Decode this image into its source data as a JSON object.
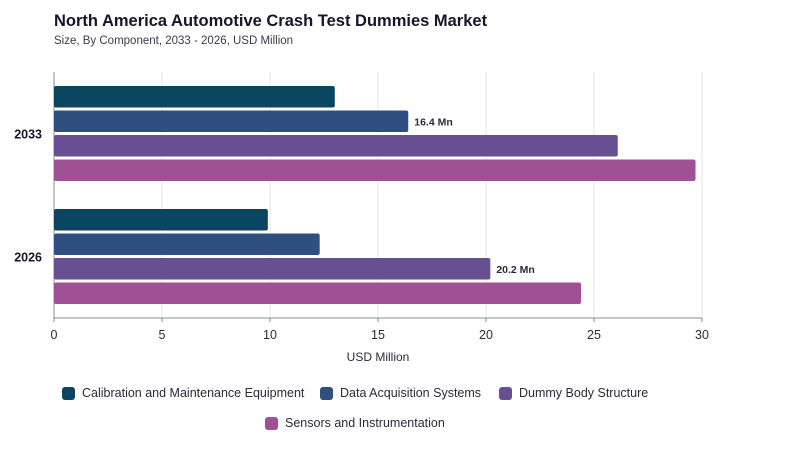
{
  "header": {
    "title": "North America Automotive Crash Test Dummies Market",
    "subtitle": "Size, By Component, 2033 - 2026, USD Million"
  },
  "chart_data": {
    "type": "bar",
    "orientation": "horizontal",
    "categories": [
      "2033",
      "2026"
    ],
    "series": [
      {
        "name": "Calibration and Maintenance Equipment",
        "color": "#0b4560",
        "values": [
          13.0,
          9.9
        ]
      },
      {
        "name": "Data Acquisition Systems",
        "color": "#2f4f7f",
        "values": [
          16.4,
          12.3
        ]
      },
      {
        "name": "Dummy Body Structure",
        "color": "#674f92",
        "values": [
          26.1,
          20.2
        ]
      },
      {
        "name": "Sensors and Instrumentation",
        "color": "#a05095",
        "values": [
          29.7,
          24.4
        ]
      }
    ],
    "data_labels": [
      {
        "category": "2033",
        "series": "Data Acquisition Systems",
        "text": "16.4 Mn"
      },
      {
        "category": "2026",
        "series": "Dummy Body Structure",
        "text": "20.2 Mn"
      }
    ],
    "xlabel": "USD Million",
    "ylabel": "",
    "xlim": [
      0,
      30
    ],
    "xticks": [
      "0",
      "5",
      "10",
      "15",
      "20",
      "25",
      "30"
    ],
    "grid": true,
    "legend_position": "bottom"
  }
}
